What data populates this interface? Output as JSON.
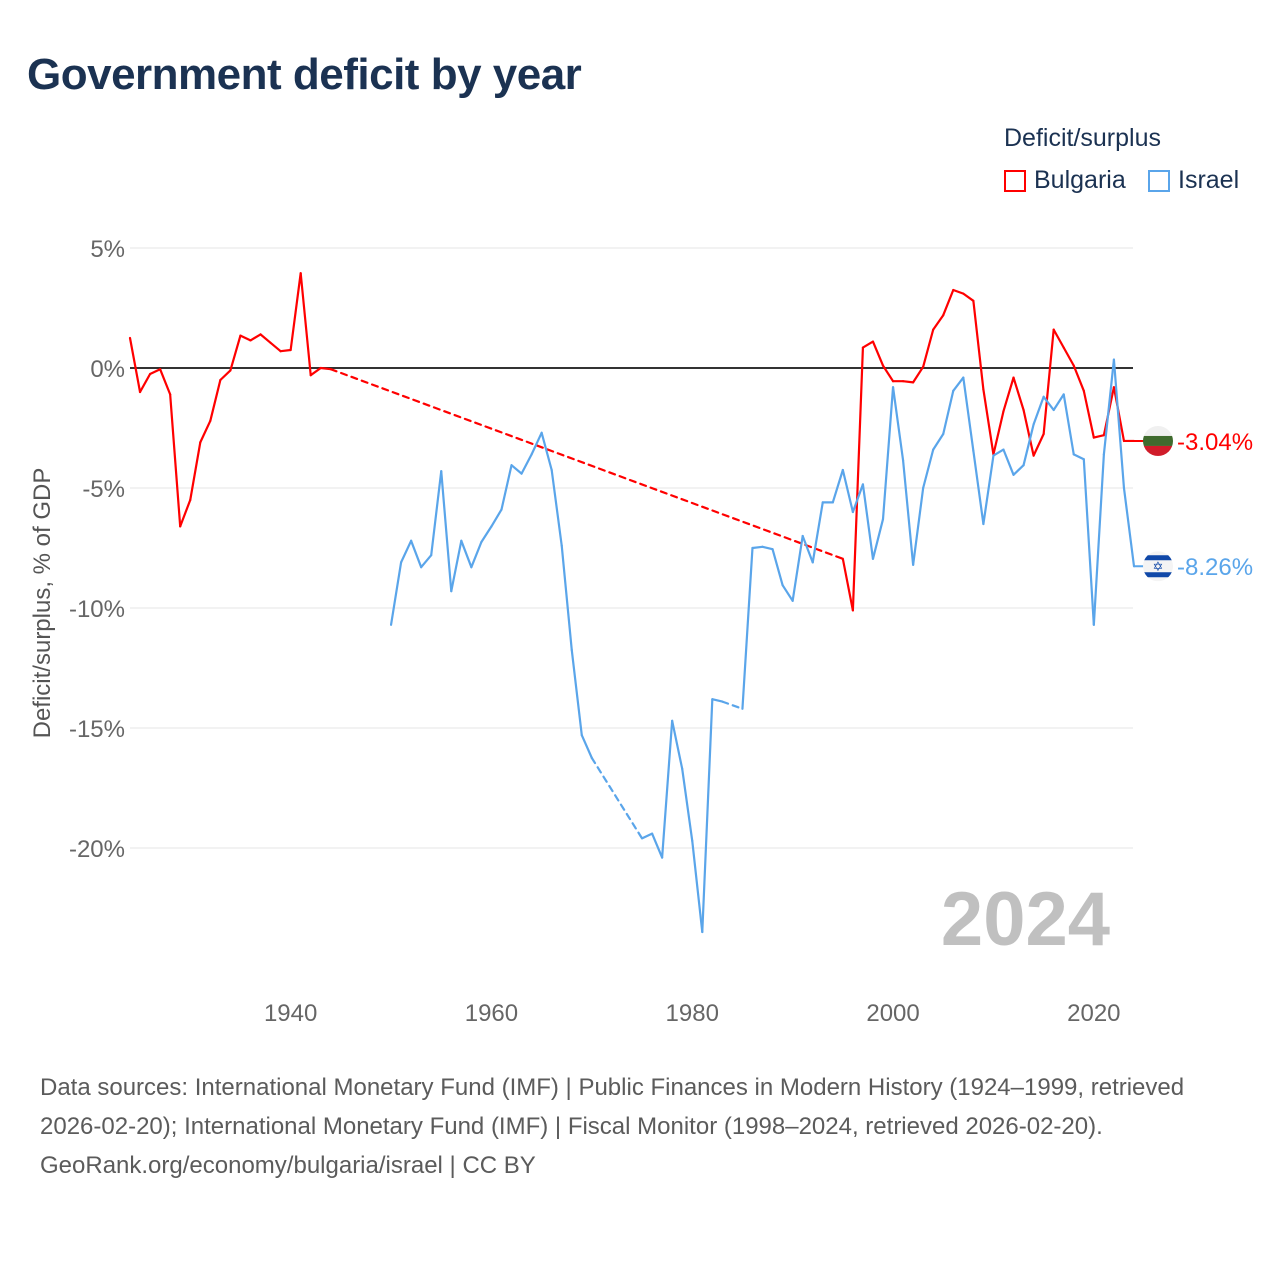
{
  "chart_data": {
    "type": "line",
    "title": "Government deficit by year",
    "xlabel": "",
    "ylabel": "Deficit/surplus, % of GDP",
    "xlim": [
      1924,
      2024
    ],
    "ylim": [
      -25,
      5
    ],
    "x_ticks": [
      1940,
      1960,
      1980,
      2000,
      2020
    ],
    "y_ticks": [
      5,
      0,
      -5,
      -10,
      -15,
      -20
    ],
    "y_tick_labels": [
      "5%",
      "0%",
      "-5%",
      "-10%",
      "-15%",
      "-20%"
    ],
    "grid": true,
    "legend_title": "Deficit/surplus",
    "legend_position": "top-right",
    "current_year_label": "2024",
    "series": [
      {
        "name": "Bulgaria",
        "color": "#ff0000",
        "end_label": "-3.04%",
        "flag": "bulgaria-flag",
        "points": [
          [
            1924,
            1.25
          ],
          [
            1925,
            -1.0
          ],
          [
            1926,
            -0.25
          ],
          [
            1927,
            -0.05
          ],
          [
            1928,
            -1.1
          ],
          [
            1929,
            -6.6
          ],
          [
            1930,
            -5.5
          ],
          [
            1931,
            -3.1
          ],
          [
            1932,
            -2.2
          ],
          [
            1933,
            -0.5
          ],
          [
            1934,
            -0.1
          ],
          [
            1935,
            1.35
          ],
          [
            1936,
            1.15
          ],
          [
            1937,
            1.4
          ],
          [
            1938,
            1.05
          ],
          [
            1939,
            0.7
          ],
          [
            1940,
            0.75
          ],
          [
            1941,
            3.95
          ],
          [
            1942,
            -0.3
          ],
          [
            1943,
            0.0
          ],
          [
            1944,
            -0.05
          ],
          [
            1995,
            -7.95
          ],
          [
            1996,
            -10.1
          ],
          [
            1997,
            0.85
          ],
          [
            1998,
            1.1
          ],
          [
            1999,
            0.1
          ],
          [
            2000,
            -0.55
          ],
          [
            2001,
            -0.55
          ],
          [
            2002,
            -0.6
          ],
          [
            2003,
            0.05
          ],
          [
            2004,
            1.6
          ],
          [
            2005,
            2.2
          ],
          [
            2006,
            3.25
          ],
          [
            2007,
            3.1
          ],
          [
            2008,
            2.8
          ],
          [
            2009,
            -0.9
          ],
          [
            2010,
            -3.6
          ],
          [
            2011,
            -1.8
          ],
          [
            2012,
            -0.4
          ],
          [
            2013,
            -1.75
          ],
          [
            2014,
            -3.65
          ],
          [
            2015,
            -2.75
          ],
          [
            2016,
            1.6
          ],
          [
            2017,
            0.85
          ],
          [
            2018,
            0.1
          ],
          [
            2019,
            -0.95
          ],
          [
            2020,
            -2.9
          ],
          [
            2021,
            -2.8
          ],
          [
            2022,
            -0.8
          ],
          [
            2023,
            -3.04
          ],
          [
            2024,
            -3.04
          ]
        ]
      },
      {
        "name": "Israel",
        "color": "#5aa5ea",
        "end_label": "-8.26%",
        "flag": "israel-flag",
        "points": [
          [
            1950,
            -10.7
          ],
          [
            1951,
            -8.1
          ],
          [
            1952,
            -7.2
          ],
          [
            1953,
            -8.3
          ],
          [
            1954,
            -7.8
          ],
          [
            1955,
            -4.3
          ],
          [
            1956,
            -9.3
          ],
          [
            1957,
            -7.2
          ],
          [
            1958,
            -8.3
          ],
          [
            1959,
            -7.25
          ],
          [
            1960,
            -6.6
          ],
          [
            1961,
            -5.9
          ],
          [
            1962,
            -4.05
          ],
          [
            1963,
            -4.4
          ],
          [
            1964,
            -3.6
          ],
          [
            1965,
            -2.7
          ],
          [
            1966,
            -4.25
          ],
          [
            1967,
            -7.4
          ],
          [
            1968,
            -11.75
          ],
          [
            1969,
            -15.3
          ],
          [
            1970,
            -16.25
          ],
          [
            1975,
            -19.6
          ],
          [
            1976,
            -19.4
          ],
          [
            1977,
            -20.4
          ],
          [
            1978,
            -14.7
          ],
          [
            1979,
            -16.7
          ],
          [
            1980,
            -19.7
          ],
          [
            1981,
            -23.5
          ],
          [
            1982,
            -13.8
          ],
          [
            1983,
            -13.9
          ],
          [
            1985,
            -14.2
          ],
          [
            1986,
            -7.5
          ],
          [
            1987,
            -7.45
          ],
          [
            1988,
            -7.55
          ],
          [
            1989,
            -9.05
          ],
          [
            1990,
            -9.7
          ],
          [
            1991,
            -7.0
          ],
          [
            1992,
            -8.1
          ],
          [
            1993,
            -5.6
          ],
          [
            1994,
            -5.6
          ],
          [
            1995,
            -4.25
          ],
          [
            1996,
            -6.0
          ],
          [
            1997,
            -4.85
          ],
          [
            1998,
            -7.95
          ],
          [
            1999,
            -6.3
          ],
          [
            2000,
            -0.8
          ],
          [
            2001,
            -3.85
          ],
          [
            2002,
            -8.2
          ],
          [
            2003,
            -5.0
          ],
          [
            2004,
            -3.4
          ],
          [
            2005,
            -2.75
          ],
          [
            2006,
            -0.95
          ],
          [
            2007,
            -0.4
          ],
          [
            2008,
            -3.45
          ],
          [
            2009,
            -6.5
          ],
          [
            2010,
            -3.65
          ],
          [
            2011,
            -3.4
          ],
          [
            2012,
            -4.45
          ],
          [
            2013,
            -4.05
          ],
          [
            2014,
            -2.35
          ],
          [
            2015,
            -1.2
          ],
          [
            2016,
            -1.75
          ],
          [
            2017,
            -1.1
          ],
          [
            2018,
            -3.6
          ],
          [
            2019,
            -3.8
          ],
          [
            2020,
            -10.7
          ],
          [
            2021,
            -3.6
          ],
          [
            2022,
            0.35
          ],
          [
            2023,
            -5.0
          ],
          [
            2024,
            -8.26
          ]
        ]
      }
    ]
  },
  "footer": {
    "sources": "Data sources: International Monetary Fund (IMF) | Public Finances in Modern History (1924–1999, retrieved 2026-02-20); International Monetary Fund (IMF) | Fiscal Monitor (1998–2024, retrieved 2026-02-20).",
    "attribution": "GeoRank.org/economy/bulgaria/israel | CC BY"
  }
}
